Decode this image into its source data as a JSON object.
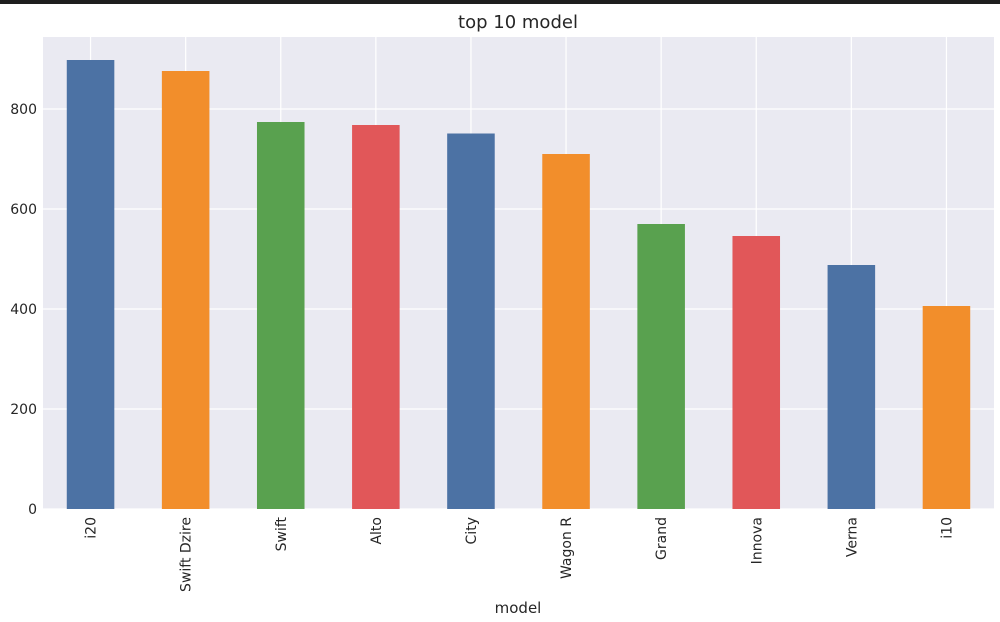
{
  "chart_data": {
    "type": "bar",
    "title": "top 10 model",
    "xlabel": "model",
    "ylabel": "",
    "categories": [
      "i20",
      "Swift Dzire",
      "Swift",
      "Alto",
      "City",
      "Wagon R",
      "Grand",
      "Innova",
      "Verna",
      "i10"
    ],
    "values": [
      898,
      876,
      774,
      768,
      751,
      710,
      570,
      546,
      488,
      406
    ],
    "ylim": [
      0,
      944
    ],
    "yticks": [
      0,
      200,
      400,
      600,
      800
    ],
    "grid": true,
    "bar_colors": [
      "#4c72a4",
      "#f28e2b",
      "#59a14f",
      "#e15759",
      "#4c72a4",
      "#f28e2b",
      "#59a14f",
      "#e15759",
      "#4c72a4",
      "#f28e2b"
    ],
    "background_color": "#eaeaf2",
    "grid_color": "#ffffff"
  }
}
